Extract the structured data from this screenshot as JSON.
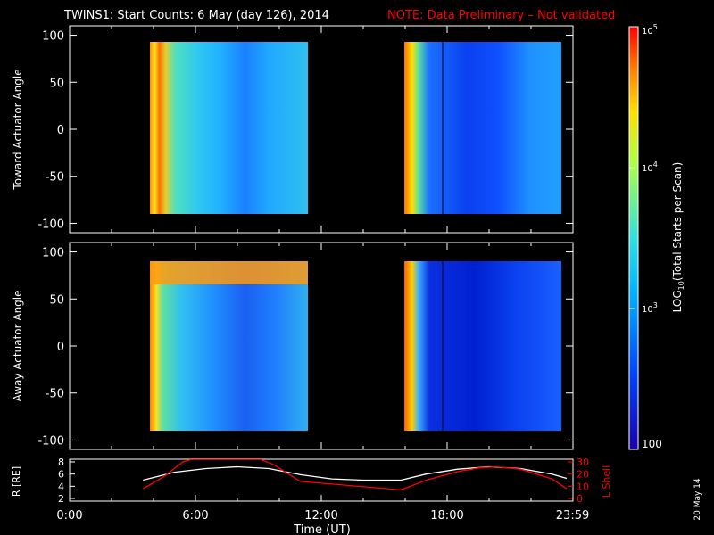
{
  "header": {
    "title": "TWINS1: Start Counts:  6 May (day 126), 2014",
    "note": "NOTE: Data Preliminary – Not validated"
  },
  "date_stamp": "20 May 14",
  "colors": {
    "background": "#000000",
    "axis": "#ffffff",
    "note": "#ff0000",
    "r_line": "#ffffff",
    "lshell_line": "#ff0000"
  },
  "colorbar": {
    "label": "LOG10(Total Starts per Scan)",
    "ticks": [
      "100",
      "10^3",
      "10^4",
      "10^5"
    ],
    "tick_values": [
      100,
      1000,
      10000,
      100000
    ],
    "colormap": "blue-cyan-yellow-red"
  },
  "chart_data": [
    {
      "type": "heatmap",
      "ylabel": "Toward Actuator Angle",
      "ylim": [
        -110,
        110
      ],
      "yticks": [
        "100",
        "50",
        "0",
        "-50",
        "-100"
      ],
      "ytick_values": [
        100,
        50,
        0,
        -50,
        -100
      ],
      "xlim": [
        0,
        24
      ],
      "data_blocks": [
        {
          "x_start": 3.5,
          "x_end": 11.5,
          "y_min": -90,
          "y_max": 90
        },
        {
          "x_start": 15.8,
          "x_end": 23.7,
          "y_min": -90,
          "y_max": 90
        }
      ],
      "marker_line_x": 17.85
    },
    {
      "type": "heatmap",
      "ylabel": "Away Actuator Angle",
      "ylim": [
        -110,
        110
      ],
      "yticks": [
        "100",
        "50",
        "0",
        "-50",
        "-100"
      ],
      "ytick_values": [
        100,
        50,
        0,
        -50,
        -100
      ],
      "xlim": [
        0,
        24
      ],
      "data_blocks": [
        {
          "x_start": 3.5,
          "x_end": 11.5,
          "y_min": -90,
          "y_max": 90
        },
        {
          "x_start": 15.8,
          "x_end": 23.7,
          "y_min": -90,
          "y_max": 90
        }
      ],
      "marker_line_x": 17.85
    },
    {
      "type": "line",
      "ylabel": "R [RE]",
      "y2label": "L Shell",
      "ylim": [
        2,
        8
      ],
      "y2lim": [
        0,
        30
      ],
      "yticks": [
        "8",
        "6",
        "4",
        "2"
      ],
      "y2ticks": [
        "30",
        "20",
        "10",
        "0"
      ],
      "xlabel": "Time (UT)",
      "xlim": [
        0,
        24
      ],
      "xticks": [
        "0:00",
        "6:00",
        "12:00",
        "18:00",
        "23:59"
      ],
      "xtick_values": [
        0,
        6,
        12,
        18,
        23.98
      ],
      "series": [
        {
          "name": "R",
          "x": [
            3.5,
            5,
            6.5,
            8,
            9.5,
            11,
            12.5,
            14,
            15.8,
            17,
            18.5,
            20,
            21.5,
            23,
            23.7
          ],
          "y": [
            5.0,
            6.3,
            6.9,
            7.2,
            6.9,
            5.9,
            5.2,
            5.0,
            5.0,
            6.0,
            6.8,
            7.2,
            6.9,
            6.0,
            5.3
          ]
        },
        {
          "name": "L Shell",
          "x": [
            3.5,
            4.5,
            5.4,
            5.8,
            9.1,
            9.7,
            11,
            15.8,
            17,
            18.5,
            19.5,
            20.3,
            21.5,
            23,
            23.7
          ],
          "y": [
            8,
            18,
            30,
            32,
            32,
            28,
            14,
            7,
            15,
            22,
            25,
            26,
            24,
            16,
            8
          ]
        }
      ]
    }
  ]
}
